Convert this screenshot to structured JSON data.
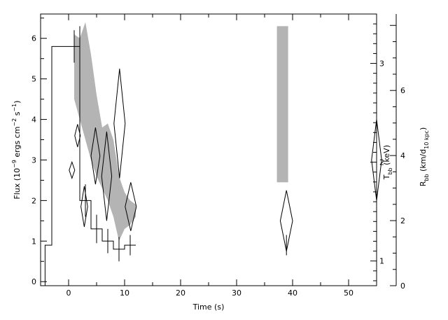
{
  "chart_data": {
    "type": "scatter",
    "xlabel": "Time (s)",
    "ylabel_left": "Flux (10⁻⁹ ergs cm⁻² s⁻¹)",
    "ylabel_right_1": "T_bb (keV)",
    "ylabel_right_2": "R_bb (km/d_10 kpc)",
    "xlim": [
      -5,
      55
    ],
    "ylim_left": [
      -0.1,
      6.6
    ],
    "ylim_right_1": [
      0.75,
      3.5
    ],
    "ylim_right_2": [
      0,
      8.35
    ],
    "x_ticks": [
      0,
      10,
      20,
      30,
      40,
      50
    ],
    "y_ticks_left": [
      0,
      1,
      2,
      3,
      4,
      5,
      6
    ],
    "y_ticks_right_1": [
      1,
      2,
      3
    ],
    "y_ticks_right_2": [
      0,
      2,
      4,
      6
    ],
    "grid": false,
    "flux_histogram": {
      "edges": [
        -4.2,
        -3,
        0,
        2,
        4,
        6,
        8,
        10,
        12
      ],
      "values": [
        0.9,
        5.8,
        5.8,
        2.0,
        1.3,
        1.0,
        0.8,
        0.9
      ]
    },
    "flux_errorbars": [
      {
        "x": 1,
        "y": 5.8,
        "yerr": 0.4
      },
      {
        "x": 2,
        "y": 5.8,
        "yerr": 0.5
      },
      {
        "x": 3,
        "y": 2.0,
        "yerr": 0.4
      },
      {
        "x": 5,
        "y": 1.3,
        "yerr": 0.35
      },
      {
        "x": 7,
        "y": 1.0,
        "yerr": 0.3
      },
      {
        "x": 9,
        "y": 0.8,
        "yerr": 0.3
      },
      {
        "x": 11,
        "y": 0.9,
        "yerr": 0.25
      },
      {
        "x": 38.9,
        "y": 0.9,
        "yerr": 0.25
      }
    ],
    "temperature_diamonds": [
      {
        "x": 0.6,
        "center": 2.75,
        "half_height": 0.2,
        "half_width": 0.5
      },
      {
        "x": 1.6,
        "center": 3.6,
        "half_height": 0.28,
        "half_width": 0.5
      },
      {
        "x": 2.8,
        "center": 1.85,
        "half_height": 0.5,
        "half_width": 0.6
      },
      {
        "x": 4.8,
        "center": 3.1,
        "half_height": 0.7,
        "half_width": 0.8
      },
      {
        "x": 6.8,
        "center": 2.6,
        "half_height": 1.1,
        "half_width": 0.9
      },
      {
        "x": 9.1,
        "center": 3.9,
        "half_height": 1.35,
        "half_width": 1.0
      },
      {
        "x": 11.1,
        "center": 1.85,
        "half_height": 0.6,
        "half_width": 1.0
      },
      {
        "x": 38.9,
        "center": 1.5,
        "half_height": 0.75,
        "half_width": 1.1
      },
      {
        "x": 55,
        "center": 3.0,
        "half_height": 1.0,
        "half_width": 0.9
      }
    ],
    "radius_band": [
      {
        "x": 1,
        "low": 4.5,
        "high": 6.1
      },
      {
        "x": 2,
        "low": 4.0,
        "high": 6.0
      },
      {
        "x": 3,
        "low": 3.5,
        "high": 6.4
      },
      {
        "x": 4,
        "low": 3.0,
        "high": 5.6
      },
      {
        "x": 5,
        "low": 2.6,
        "high": 4.6
      },
      {
        "x": 6,
        "low": 2.3,
        "high": 3.8
      },
      {
        "x": 7,
        "low": 2.0,
        "high": 3.9
      },
      {
        "x": 8,
        "low": 1.6,
        "high": 3.5
      },
      {
        "x": 9,
        "low": 1.0,
        "high": 2.6
      },
      {
        "x": 10,
        "low": 1.3,
        "high": 2.2
      },
      {
        "x": 11,
        "low": 1.4,
        "high": 2.0
      },
      {
        "x": 12,
        "low": 1.6,
        "high": 1.9
      }
    ],
    "radius_bar": {
      "x0": 37.2,
      "x1": 39.2,
      "low": 2.45,
      "high": 6.3
    }
  }
}
